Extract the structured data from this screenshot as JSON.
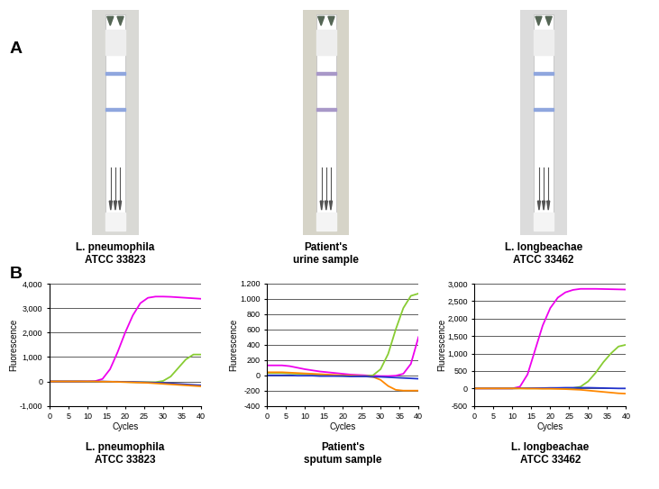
{
  "panel_labels": [
    "A",
    "B"
  ],
  "strips": [
    {
      "caption": "L. pneumophila\nATCC 33823"
    },
    {
      "caption": "Patient's\nurine sample"
    },
    {
      "caption": "L. longbeachae\nATCC 33462"
    }
  ],
  "chart_data": [
    {
      "type": "line",
      "title": "L. pneumophila\nATCC 33823",
      "x_label": "Cycles",
      "y_label": "Fluorescence",
      "x": [
        0,
        2,
        4,
        6,
        8,
        10,
        12,
        14,
        16,
        18,
        20,
        22,
        24,
        26,
        28,
        30,
        32,
        34,
        36,
        38,
        40
      ],
      "xlim": [
        0,
        40
      ],
      "xticks": [
        0,
        5,
        10,
        15,
        20,
        25,
        30,
        35,
        40
      ],
      "ylim": [
        -1000,
        4000
      ],
      "yticks": [
        {
          "value": -1000,
          "label": "-1,000"
        },
        0,
        {
          "value": 1000,
          "label": "1,000"
        },
        {
          "value": 2000,
          "label": "2,000"
        },
        {
          "value": 3000,
          "label": "3,000"
        },
        {
          "value": 4000,
          "label": "4,000"
        }
      ],
      "grid": true,
      "series": [
        {
          "color": "#ee00ee",
          "values": [
            0,
            0,
            0,
            0,
            0,
            0,
            10,
            100,
            500,
            1200,
            2000,
            2700,
            3200,
            3420,
            3470,
            3470,
            3460,
            3440,
            3420,
            3400,
            3380
          ]
        },
        {
          "color": "#88cc33",
          "values": [
            0,
            0,
            0,
            0,
            0,
            -10,
            -10,
            -20,
            -20,
            -20,
            -20,
            -30,
            -30,
            -30,
            -30,
            20,
            200,
            550,
            900,
            1100,
            1100
          ]
        },
        {
          "color": "#2233cc",
          "values": [
            0,
            0,
            0,
            0,
            0,
            0,
            0,
            0,
            -10,
            -10,
            -20,
            -20,
            -30,
            -40,
            -50,
            -60,
            -80,
            -100,
            -120,
            -140,
            -160
          ]
        },
        {
          "color": "#ff8800",
          "values": [
            0,
            0,
            0,
            0,
            0,
            0,
            0,
            -10,
            -10,
            -20,
            -30,
            -40,
            -50,
            -60,
            -80,
            -100,
            -120,
            -140,
            -160,
            -180,
            -200
          ]
        }
      ]
    },
    {
      "type": "line",
      "title": "Patient's\nsputum sample",
      "x_label": "Cycles",
      "y_label": "Fluorescence",
      "x": [
        0,
        2,
        4,
        6,
        8,
        10,
        12,
        14,
        16,
        18,
        20,
        22,
        24,
        26,
        28,
        30,
        32,
        34,
        36,
        38,
        40
      ],
      "xlim": [
        0,
        40
      ],
      "xticks": [
        0,
        5,
        10,
        15,
        20,
        25,
        30,
        35,
        40
      ],
      "ylim": [
        -400,
        1200
      ],
      "yticks": [
        -400,
        -200,
        0,
        200,
        400,
        600,
        800,
        {
          "value": 1000,
          "label": "1.000"
        },
        {
          "value": 1200,
          "label": "1.200"
        }
      ],
      "grid": true,
      "series": [
        {
          "color": "#ee00ee",
          "values": [
            130,
            130,
            130,
            120,
            100,
            80,
            65,
            50,
            40,
            30,
            20,
            10,
            5,
            0,
            -5,
            -10,
            -10,
            -5,
            20,
            150,
            500
          ]
        },
        {
          "color": "#88cc33",
          "values": [
            30,
            30,
            30,
            25,
            20,
            15,
            10,
            5,
            0,
            -5,
            -10,
            -10,
            -10,
            -10,
            0,
            80,
            280,
            600,
            880,
            1040,
            1070
          ]
        },
        {
          "color": "#ff8800",
          "values": [
            40,
            40,
            40,
            35,
            30,
            25,
            20,
            15,
            10,
            5,
            0,
            -5,
            -10,
            -15,
            -20,
            -60,
            -140,
            -190,
            -200,
            -200,
            -200
          ]
        },
        {
          "color": "#2233cc",
          "values": [
            0,
            0,
            0,
            0,
            -5,
            -5,
            -5,
            -10,
            -10,
            -10,
            -10,
            -15,
            -15,
            -15,
            -20,
            -20,
            -25,
            -30,
            -35,
            -40,
            -45
          ]
        }
      ]
    },
    {
      "type": "line",
      "title": "L. longbeachae\nATCC 33462",
      "x_label": "Cycles",
      "y_label": "Fluorescence",
      "x": [
        0,
        2,
        4,
        6,
        8,
        10,
        12,
        14,
        16,
        18,
        20,
        22,
        24,
        26,
        28,
        30,
        32,
        34,
        36,
        38,
        40
      ],
      "xlim": [
        0,
        40
      ],
      "xticks": [
        0,
        5,
        10,
        15,
        20,
        25,
        30,
        35,
        40
      ],
      "ylim": [
        -500,
        3000
      ],
      "yticks": [
        -500,
        0,
        500,
        {
          "value": 1000,
          "label": "1,000"
        },
        {
          "value": 1500,
          "label": "1,500"
        },
        {
          "value": 2000,
          "label": "2,000"
        },
        {
          "value": 2500,
          "label": "2,500"
        },
        {
          "value": 3000,
          "label": "3,000"
        }
      ],
      "grid": true,
      "series": [
        {
          "color": "#ee00ee",
          "values": [
            0,
            0,
            0,
            0,
            0,
            0,
            50,
            400,
            1100,
            1800,
            2300,
            2600,
            2750,
            2820,
            2850,
            2850,
            2850,
            2845,
            2840,
            2835,
            2830
          ]
        },
        {
          "color": "#88cc33",
          "values": [
            0,
            0,
            0,
            0,
            0,
            0,
            0,
            0,
            0,
            0,
            0,
            0,
            0,
            10,
            50,
            200,
            450,
            750,
            1000,
            1200,
            1250
          ]
        },
        {
          "color": "#2233cc",
          "values": [
            0,
            0,
            0,
            0,
            0,
            0,
            5,
            5,
            10,
            10,
            15,
            15,
            20,
            20,
            20,
            20,
            15,
            10,
            5,
            0,
            0
          ]
        },
        {
          "color": "#ff8800",
          "values": [
            0,
            0,
            0,
            0,
            0,
            0,
            0,
            -5,
            -5,
            -10,
            -10,
            -15,
            -20,
            -30,
            -40,
            -60,
            -80,
            -100,
            -120,
            -140,
            -150
          ]
        }
      ]
    }
  ]
}
